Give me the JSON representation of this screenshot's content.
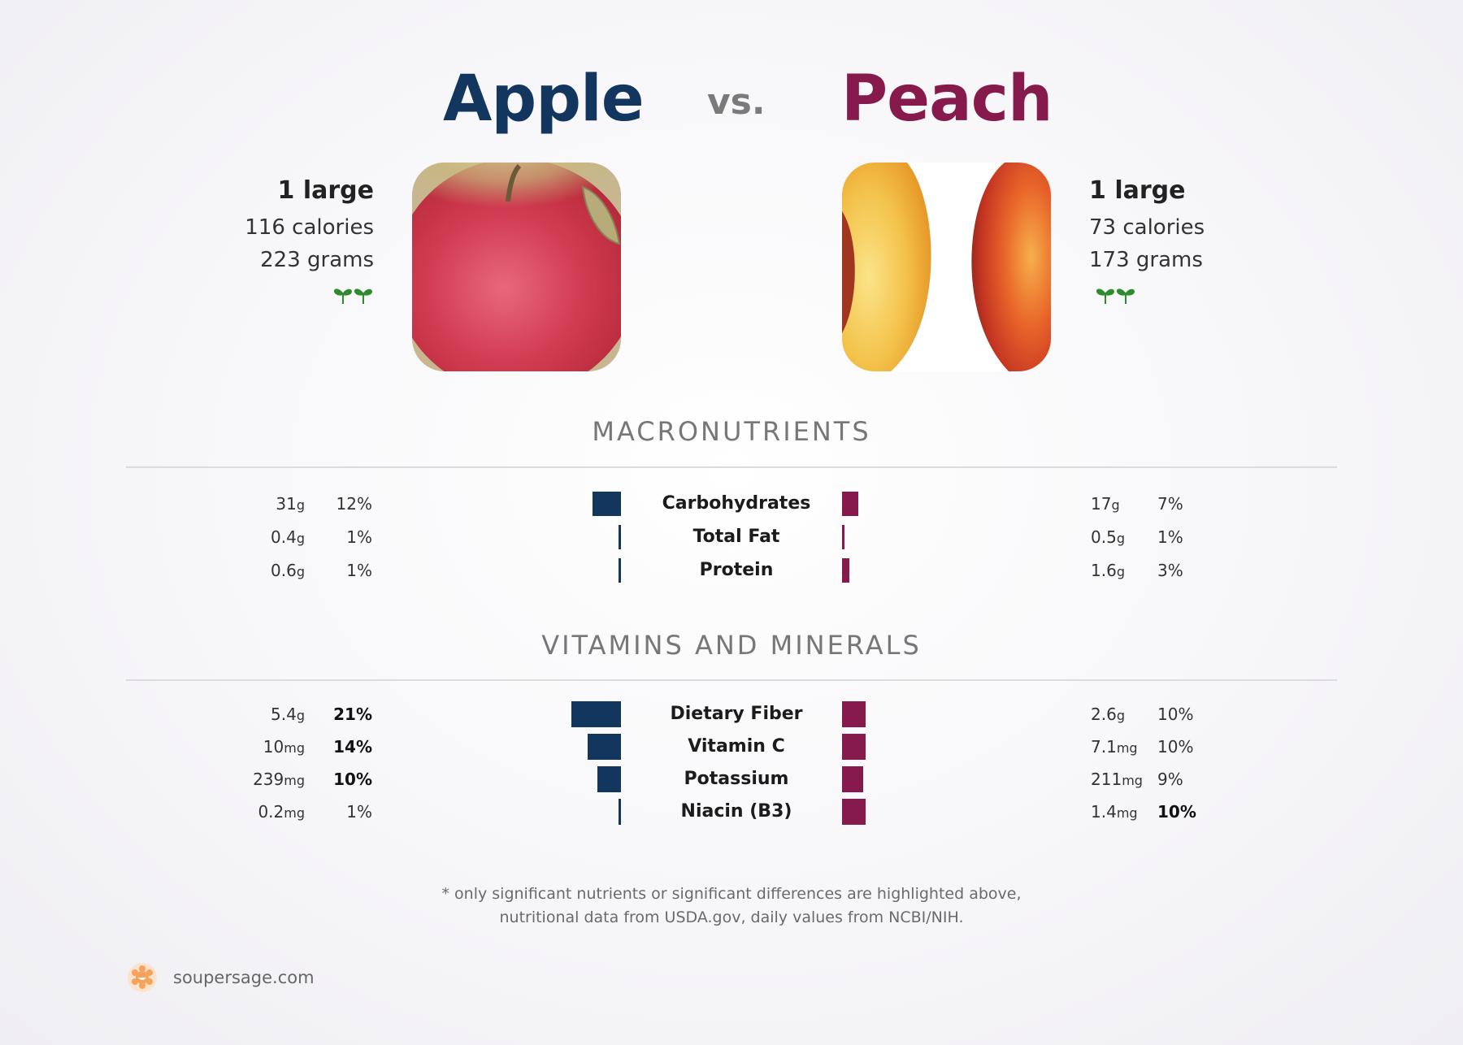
{
  "header": {
    "left_food": "Apple",
    "vs": "vs.",
    "right_food": "Peach"
  },
  "apple": {
    "serving": "1 large",
    "calories": "116 calories",
    "grams": "223 grams",
    "icon": "sprout-icon"
  },
  "peach": {
    "serving": "1 large",
    "calories": "73 calories",
    "grams": "173 grams",
    "icon": "sprout-icon"
  },
  "colors": {
    "apple": "#13365e",
    "peach": "#861a4c"
  },
  "sections": {
    "macro": "MACRONUTRIENTS",
    "vitamins": "VITAMINS AND MINERALS"
  },
  "chart_data": [
    {
      "type": "bar",
      "title": "MACRONUTRIENTS",
      "categories": [
        "Carbohydrates",
        "Total Fat",
        "Protein"
      ],
      "series": [
        {
          "name": "Apple",
          "amounts": [
            "31",
            "0.4",
            "0.6"
          ],
          "units": [
            "g",
            "g",
            "g"
          ],
          "values": [
            12,
            1,
            1
          ],
          "bold": [
            false,
            false,
            false
          ]
        },
        {
          "name": "Peach",
          "amounts": [
            "17",
            "0.5",
            "1.6"
          ],
          "units": [
            "g",
            "g",
            "g"
          ],
          "values": [
            7,
            1,
            3
          ],
          "bold": [
            false,
            false,
            false
          ]
        }
      ]
    },
    {
      "type": "bar",
      "title": "VITAMINS AND MINERALS",
      "categories": [
        "Dietary Fiber",
        "Vitamin C",
        "Potassium",
        "Niacin (B3)"
      ],
      "series": [
        {
          "name": "Apple",
          "amounts": [
            "5.4",
            "10",
            "239",
            "0.2"
          ],
          "units": [
            "g",
            "mg",
            "mg",
            "mg"
          ],
          "values": [
            21,
            14,
            10,
            1
          ],
          "bold": [
            true,
            true,
            true,
            false
          ]
        },
        {
          "name": "Peach",
          "amounts": [
            "2.6",
            "7.1",
            "211",
            "1.4"
          ],
          "units": [
            "g",
            "mg",
            "mg",
            "mg"
          ],
          "values": [
            10,
            10,
            9,
            10
          ],
          "bold": [
            false,
            false,
            false,
            true
          ]
        }
      ]
    }
  ],
  "footnote": {
    "line1": "* only significant nutrients or significant differences are highlighted above,",
    "line2": "nutritional data from USDA.gov, daily values from NCBI/NIH."
  },
  "brand": {
    "text": "soupersage.com",
    "icon": "soupersage-logo-icon"
  }
}
